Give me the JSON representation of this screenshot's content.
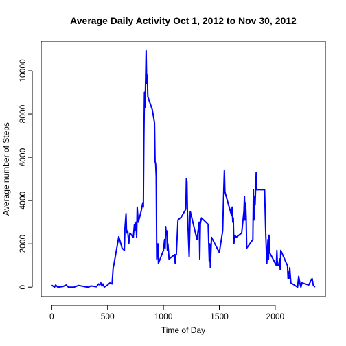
{
  "chart_data": {
    "type": "line",
    "title": "Average Daily Activity Oct 1, 2012 to Nov 30, 2012",
    "xlabel": "Time of Day",
    "ylabel": "Average number of Steps",
    "x": [
      0,
      25,
      35,
      55,
      100,
      130,
      150,
      200,
      240,
      300,
      330,
      350,
      400,
      420,
      430,
      440,
      450,
      460,
      470,
      500,
      520,
      540,
      550,
      555,
      600,
      630,
      650,
      655,
      665,
      670,
      680,
      690,
      700,
      730,
      740,
      745,
      755,
      760,
      765,
      775,
      800,
      815,
      820,
      825,
      830,
      835,
      840,
      845,
      850,
      855,
      860,
      900,
      920,
      925,
      930,
      935,
      940,
      950,
      955,
      1000,
      1010,
      1015,
      1020,
      1025,
      1030,
      1035,
      1040,
      1050,
      1100,
      1105,
      1110,
      1115,
      1130,
      1150,
      1155,
      1200,
      1205,
      1210,
      1215,
      1230,
      1240,
      1300,
      1320,
      1325,
      1330,
      1340,
      1400,
      1410,
      1415,
      1420,
      1430,
      1500,
      1530,
      1540,
      1545,
      1550,
      1610,
      1615,
      1620,
      1625,
      1630,
      1640,
      1650,
      1700,
      1720,
      1725,
      1730,
      1735,
      1740,
      1745,
      1800,
      1805,
      1810,
      1815,
      1820,
      1830,
      1835,
      1900,
      1905,
      1915,
      1925,
      1935,
      1940,
      1945,
      1950,
      2000,
      2010,
      2015,
      2020,
      2030,
      2040,
      2045,
      2050,
      2100,
      2110,
      2115,
      2120,
      2125,
      2130,
      2140,
      2200,
      2210,
      2220,
      2230,
      2240,
      2300,
      2330,
      2340,
      2355
    ],
    "series": [
      {
        "name": "steps",
        "color": "#0000ff",
        "values": [
          91,
          0,
          100,
          0,
          30,
          100,
          0,
          0,
          80,
          20,
          0,
          60,
          20,
          150,
          100,
          200,
          50,
          150,
          0,
          100,
          200,
          150,
          900,
          1000,
          2330,
          1800,
          1700,
          2700,
          3400,
          2500,
          2600,
          2000,
          2500,
          2300,
          2900,
          2600,
          3000,
          2300,
          3700,
          3000,
          3500,
          3900,
          3700,
          6900,
          9000,
          8300,
          9500,
          10927,
          9400,
          9800,
          8800,
          8200,
          7600,
          5800,
          5700,
          5100,
          1300,
          2000,
          1100,
          1700,
          2200,
          1800,
          2800,
          2400,
          2600,
          1700,
          2000,
          1300,
          1500,
          1100,
          1500,
          1500,
          3100,
          3200,
          3200,
          3600,
          5000,
          4900,
          3400,
          1400,
          3500,
          2200,
          3000,
          1300,
          2900,
          3200,
          2900,
          1200,
          2000,
          900,
          2300,
          1600,
          2600,
          4600,
          5400,
          4400,
          3300,
          3700,
          3000,
          3200,
          2000,
          2400,
          2300,
          2500,
          3500,
          4200,
          3100,
          3900,
          3200,
          1800,
          2200,
          4500,
          3100,
          4200,
          3800,
          5300,
          4500,
          4500,
          4500,
          2500,
          1100,
          2200,
          1300,
          2400,
          1600,
          1100,
          1000,
          1700,
          1000,
          1000,
          1300,
          800,
          1700,
          1100,
          1000,
          400,
          700,
          400,
          900,
          200,
          0,
          500,
          200,
          0,
          200,
          100,
          400,
          100,
          0
        ]
      }
    ],
    "xlim": [
      -94.2,
      2449.2
    ],
    "ylim": [
      -437.08,
      11364.08
    ],
    "xticks": [
      0,
      500,
      1000,
      1500,
      2000
    ],
    "yticks": [
      0,
      2000,
      4000,
      6000,
      8000,
      10000
    ]
  }
}
